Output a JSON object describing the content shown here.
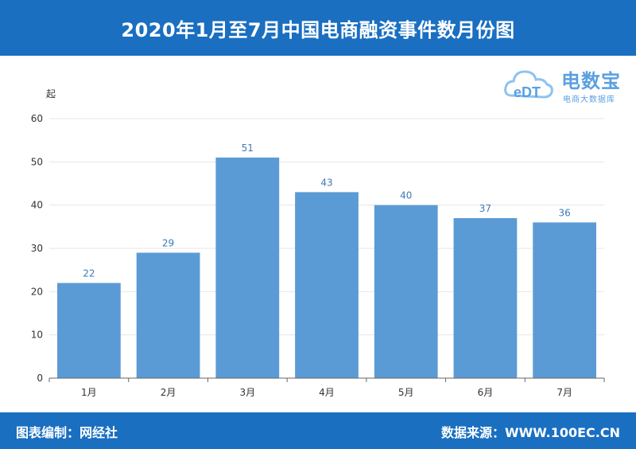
{
  "header": {
    "title": "2020年1月至7月中国电商融资事件数月份图"
  },
  "footer": {
    "left_text": "图表编制：网经社",
    "right_text": "数据来源：WWW.100EC.CN"
  },
  "logo": {
    "name": "电数宝",
    "subtitle": "电商大数据库",
    "mark_text": "eDT",
    "icon": "cloud-logo-icon"
  },
  "colors": {
    "bar": "#5b9bd5",
    "header_bg": "#1a6fc1",
    "label": "#3d7ab8"
  },
  "chart_data": {
    "type": "bar",
    "categories": [
      "1月",
      "2月",
      "3月",
      "4月",
      "5月",
      "6月",
      "7月"
    ],
    "values": [
      22,
      29,
      51,
      43,
      40,
      37,
      36
    ],
    "title": "",
    "xlabel": "",
    "ylabel": "起",
    "ylim": [
      0,
      60
    ],
    "yticks": [
      0,
      10,
      20,
      30,
      40,
      50,
      60
    ],
    "grid": true,
    "data_labels": true
  }
}
